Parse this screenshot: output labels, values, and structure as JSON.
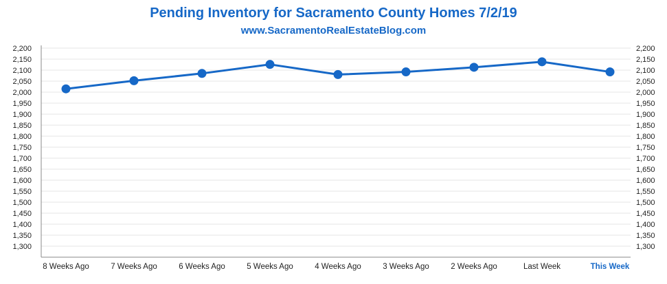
{
  "chart_data": {
    "type": "line",
    "title": "Pending Inventory for Sacramento County Homes 7/2/19",
    "subtitle": "www.SacramentoRealEstateBlog.com",
    "categories": [
      "8 Weeks Ago",
      "7 Weeks Ago",
      "6 Weeks Ago",
      "5 Weeks Ago",
      "4 Weeks Ago",
      "3 Weeks Ago",
      "2 Weeks Ago",
      "Last Week",
      "This Week"
    ],
    "series": [
      {
        "values": [
          2015,
          2052,
          2085,
          2126,
          2080,
          2092,
          2113,
          2138,
          2092
        ]
      }
    ],
    "ylim": [
      1250,
      2200
    ],
    "yticks": [
      "1,300",
      "1,350",
      "1,400",
      "1,450",
      "1,500",
      "1,550",
      "1,600",
      "1,650",
      "1,700",
      "1,750",
      "1,800",
      "1,850",
      "1,900",
      "1,950",
      "2,000",
      "2,050",
      "2,100",
      "2,150",
      "2,200"
    ],
    "ytick_values": [
      1300,
      1350,
      1400,
      1450,
      1500,
      1550,
      1600,
      1650,
      1700,
      1750,
      1800,
      1850,
      1900,
      1950,
      2000,
      2050,
      2100,
      2150,
      2200
    ],
    "grid": true,
    "highlight_category": "This Week",
    "colors": {
      "line": "#1668c7",
      "title": "#1668c7",
      "grid": "#e6e6e6",
      "axis": "#888888"
    }
  }
}
